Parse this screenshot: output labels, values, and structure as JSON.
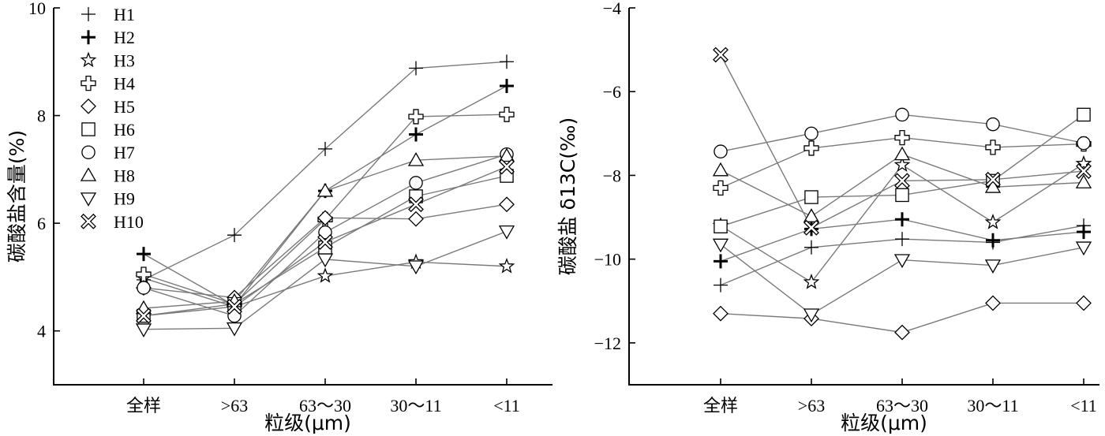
{
  "chart_data": [
    {
      "type": "line",
      "categories": [
        "全样",
        ">63",
        "63～30",
        "30～11",
        "<11"
      ],
      "xlabel": "粒级(μm)",
      "ylabel": "碳酸盐含量(%)",
      "ylim": [
        3,
        10
      ],
      "yticks": [
        "4",
        "6",
        "8",
        "10"
      ],
      "grid": false,
      "legend_position": "top-left",
      "series": [
        {
          "name": "H1",
          "marker": "plus-thin",
          "values": [
            4.95,
            5.78,
            7.38,
            8.88,
            9.0
          ]
        },
        {
          "name": "H2",
          "marker": "plus-bold",
          "values": [
            5.43,
            4.47,
            6.6,
            7.65,
            8.55
          ]
        },
        {
          "name": "H3",
          "marker": "star",
          "values": [
            4.98,
            4.45,
            5.02,
            5.28,
            5.2
          ]
        },
        {
          "name": "H4",
          "marker": "plus-outline",
          "values": [
            5.05,
            4.5,
            6.07,
            7.98,
            8.02
          ]
        },
        {
          "name": "H5",
          "marker": "diamond",
          "values": [
            4.8,
            4.62,
            6.1,
            6.08,
            6.35
          ]
        },
        {
          "name": "H6",
          "marker": "square",
          "values": [
            4.28,
            4.5,
            5.55,
            6.5,
            6.88
          ]
        },
        {
          "name": "H7",
          "marker": "circle",
          "values": [
            4.8,
            4.28,
            5.83,
            6.75,
            7.28
          ]
        },
        {
          "name": "H8",
          "marker": "triangle-up",
          "values": [
            4.42,
            4.55,
            6.6,
            7.17,
            7.25
          ]
        },
        {
          "name": "H9",
          "marker": "triangle-down",
          "values": [
            4.03,
            4.05,
            5.33,
            5.2,
            5.85
          ]
        },
        {
          "name": "H10",
          "marker": "x-outline",
          "values": [
            4.28,
            4.45,
            5.65,
            6.35,
            7.05
          ]
        }
      ]
    },
    {
      "type": "line",
      "categories": [
        "全样",
        ">63",
        "63～30",
        "30～11",
        "<11"
      ],
      "xlabel": "粒级(μm)",
      "ylabel": "碳酸盐 δ13C(‰)",
      "ylim": [
        -13,
        -4
      ],
      "yticks": [
        "−4",
        "−6",
        "−8",
        "−10",
        "−12"
      ],
      "grid": false,
      "series": [
        {
          "name": "H1",
          "marker": "plus-thin",
          "values": [
            -10.62,
            -9.72,
            -9.52,
            -9.6,
            -9.2
          ]
        },
        {
          "name": "H2",
          "marker": "plus-bold",
          "values": [
            -10.05,
            -9.28,
            -9.05,
            -9.55,
            -9.35
          ]
        },
        {
          "name": "H3",
          "marker": "star",
          "values": [
            -9.2,
            -10.55,
            -7.75,
            -9.12,
            -7.72
          ]
        },
        {
          "name": "H4",
          "marker": "plus-outline",
          "values": [
            -8.3,
            -7.35,
            -7.1,
            -7.33,
            -7.25
          ]
        },
        {
          "name": "H5",
          "marker": "diamond",
          "values": [
            -11.3,
            -11.42,
            -11.75,
            -11.05,
            -11.05
          ]
        },
        {
          "name": "H6",
          "marker": "square",
          "values": [
            -9.22,
            -8.52,
            -8.47,
            -8.13,
            -6.55
          ]
        },
        {
          "name": "H7",
          "marker": "circle",
          "values": [
            -7.43,
            -7.0,
            -6.55,
            -6.78,
            -7.23
          ]
        },
        {
          "name": "H8",
          "marker": "triangle-up",
          "values": [
            -7.88,
            -8.98,
            -7.5,
            -8.28,
            -8.17
          ]
        },
        {
          "name": "H9",
          "marker": "triangle-down",
          "values": [
            -9.65,
            -11.32,
            -10.02,
            -10.15,
            -9.72
          ]
        },
        {
          "name": "H10",
          "marker": "x-outline",
          "values": [
            -5.12,
            -9.25,
            -8.13,
            -8.1,
            -7.9
          ]
        }
      ]
    }
  ]
}
